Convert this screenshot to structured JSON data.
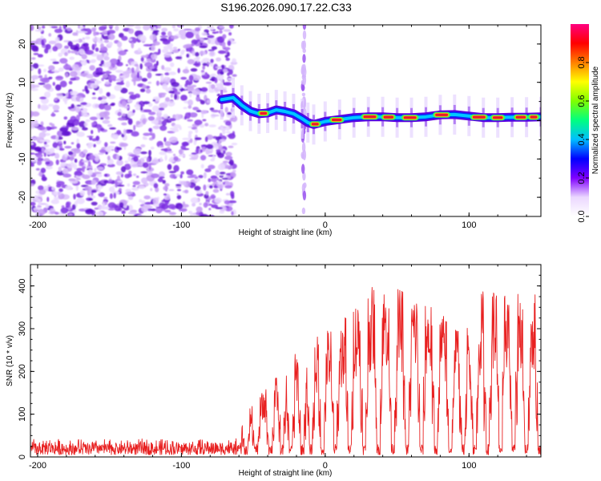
{
  "title": "S196.2026.090.17.22.C33",
  "colors": {
    "signal": "#e82020",
    "axis": "#000000",
    "speckle": "#7a2be0",
    "band_core": "#e81830"
  },
  "colorbar": {
    "label": "Normalized spectral amplitude",
    "ticks": [
      "0.0",
      "0.2",
      "0.4",
      "0.6",
      "0.8"
    ],
    "range": [
      0,
      1
    ],
    "stops": [
      "#ffffff",
      "#ebd7ff",
      "#7f00ff",
      "#0000ff",
      "#00bfff",
      "#00ff80",
      "#80ff00",
      "#ffff00",
      "#ff8000",
      "#ff0000",
      "#ff0080"
    ]
  },
  "chart_data": [
    {
      "type": "heatmap",
      "title": "",
      "xlabel": "Height of straight line (km)",
      "ylabel": "Frequency (Hz)",
      "xlim": [
        -205,
        150
      ],
      "ylim": [
        -25,
        25
      ],
      "xticks": [
        "-200",
        "-100",
        "0",
        "100"
      ],
      "yticks": [
        "20",
        "10",
        "0",
        "-10",
        "-20"
      ],
      "noise_region_x": [
        -205,
        -63
      ],
      "band_track": {
        "x": [
          -72,
          -64,
          -58,
          -52,
          -46,
          -40,
          -34,
          -28,
          -22,
          -16,
          -12,
          -8,
          0,
          10,
          20,
          30,
          40,
          50,
          60,
          70,
          80,
          90,
          100,
          110,
          120,
          130,
          140,
          150
        ],
        "freq": [
          5.5,
          6.0,
          4.0,
          2.5,
          1.8,
          2.0,
          2.8,
          2.4,
          1.8,
          0.5,
          -0.5,
          -1.0,
          -0.2,
          0.3,
          0.8,
          1.0,
          1.0,
          0.8,
          0.8,
          1.0,
          1.5,
          1.6,
          1.2,
          0.8,
          0.8,
          0.9,
          0.9,
          1.0
        ]
      },
      "peak_segments_x": [
        [
          -46,
          -40
        ],
        [
          -10,
          -4
        ],
        [
          4,
          12
        ],
        [
          26,
          36
        ],
        [
          40,
          48
        ],
        [
          54,
          64
        ],
        [
          76,
          86
        ],
        [
          102,
          112
        ],
        [
          116,
          124
        ],
        [
          132,
          140
        ],
        [
          142,
          148
        ]
      ],
      "vertical_streak_x": -15
    },
    {
      "type": "line",
      "title": "",
      "xlabel": "Height of straight line (km)",
      "ylabel": "SNR (10 * v/v)",
      "xlim": [
        -205,
        150
      ],
      "ylim": [
        0,
        450
      ],
      "xticks": [
        "-200",
        "-100",
        "0",
        "100"
      ],
      "yticks": [
        "0",
        "100",
        "200",
        "300",
        "400"
      ],
      "series": [
        {
          "name": "SNR",
          "noise_floor_x": [
            -205,
            -58
          ],
          "noise_floor_range": [
            5,
            45
          ],
          "envelope": {
            "x": [
              -58,
              -50,
              -40,
              -30,
              -20,
              -10,
              0,
              10,
              20,
              30,
              40,
              50,
              60,
              70,
              80,
              90,
              100,
              110,
              120,
              130,
              140,
              150
            ],
            "y": [
              95,
              130,
              165,
              205,
              245,
              270,
              300,
              310,
              365,
              395,
              405,
              395,
              390,
              375,
              340,
              315,
              310,
              395,
              405,
              400,
              390,
              385
            ]
          },
          "dropout_x": [
            -55,
            -48,
            -38,
            -30,
            -24,
            -16,
            -10,
            -2,
            7,
            17,
            27,
            37,
            47,
            57,
            67,
            77,
            87,
            96,
            104,
            113,
            122,
            131,
            140,
            149
          ]
        }
      ]
    }
  ]
}
